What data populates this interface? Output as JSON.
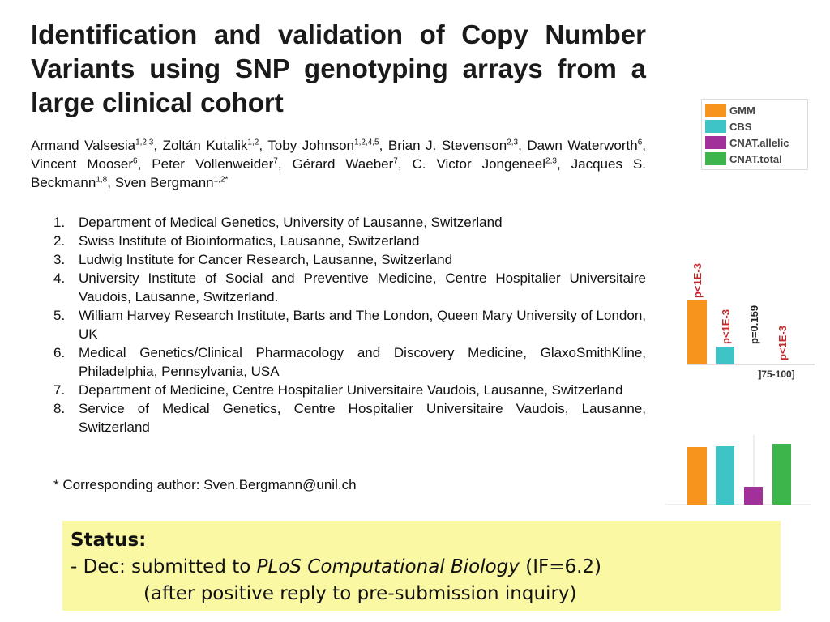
{
  "title": "Identification and validation of Copy Number Variants using SNP genotyping arrays from a large clinical cohort",
  "authors": [
    {
      "name": "Armand Valsesia",
      "sup": "1,2,3",
      "after": ","
    },
    {
      "name": "Zoltán Kutalik",
      "sup": "1,2",
      "after": ","
    },
    {
      "name": "Toby Johnson",
      "sup": "1,2,4,5",
      "after": ","
    },
    {
      "name": "Brian J. Stevenson",
      "sup": "2,3",
      "after": ","
    },
    {
      "name": "Dawn Waterworth",
      "sup": "6",
      "after": ","
    },
    {
      "name": "Vincent Mooser",
      "sup": "6",
      "after": ","
    },
    {
      "name": "Peter Vollenweider",
      "sup": "7",
      "after": ","
    },
    {
      "name": "Gérard Waeber",
      "sup": "7",
      "after": ","
    },
    {
      "name": "C. Victor Jongeneel",
      "sup": "2,3",
      "after": ","
    },
    {
      "name": "Jacques S. Beckmann",
      "sup": "1,8",
      "after": ","
    },
    {
      "name": "Sven Bergmann",
      "sup": "1,2*",
      "after": ""
    }
  ],
  "affiliations": [
    {
      "num": "1.",
      "text": "Department of Medical Genetics, University of Lausanne, Switzerland"
    },
    {
      "num": "2.",
      "text": "Swiss Institute of Bioinformatics, Lausanne, Switzerland"
    },
    {
      "num": "3.",
      "text": "Ludwig Institute for Cancer Research, Lausanne, Switzerland"
    },
    {
      "num": "4.",
      "text": "University Institute of Social and Preventive Medicine, Centre Hospitalier Universitaire Vaudois, Lausanne, Switzerland."
    },
    {
      "num": "5.",
      "text": "William Harvey Research Institute, Barts and The London, Queen Mary University of London, UK"
    },
    {
      "num": "6.",
      "text": "Medical Genetics/Clinical Pharmacology and Discovery Medicine, GlaxoSmithKline, Philadelphia, Pennsylvania, USA"
    },
    {
      "num": "7.",
      "text": "Department of Medicine, Centre Hospitalier Universitaire Vaudois, Lausanne, Switzerland"
    },
    {
      "num": "8.",
      "text": "Service of Medical Genetics, Centre Hospitalier Universitaire Vaudois, Lausanne, Switzerland"
    }
  ],
  "corresponding": "* Corresponding author: Sven.Bergmann@unil.ch",
  "legend": [
    {
      "label": "GMM",
      "color": "#f7941d"
    },
    {
      "label": "CBS",
      "color": "#3ec3c6"
    },
    {
      "label": "CNAT.allelic",
      "color": "#a1309b"
    },
    {
      "label": "CNAT.total",
      "color": "#3db54a"
    }
  ],
  "pvalues": [
    "p<1E-3",
    "p<1E-3",
    "p=0.159",
    "p<1E-3"
  ],
  "bin_label": "]75-100]",
  "status": {
    "heading": "Status:",
    "prefix": "- Dec: submitted to",
    "journal": "PLoS Computational Biology",
    "suffix": "(IF=6.2)",
    "line2": "(after positive reply to pre-submission inquiry)"
  }
}
